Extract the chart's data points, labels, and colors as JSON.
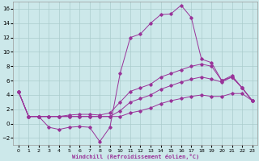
{
  "xlabel": "Windchill (Refroidissement éolien,°C)",
  "background_color": "#cce8ea",
  "grid_color": "#aacccc",
  "line_color": "#993399",
  "xlim": [
    -0.5,
    23.5
  ],
  "ylim": [
    -3,
    17
  ],
  "xticks": [
    0,
    1,
    2,
    3,
    4,
    5,
    6,
    7,
    8,
    9,
    10,
    11,
    12,
    13,
    14,
    15,
    16,
    17,
    18,
    19,
    20,
    21,
    22,
    23
  ],
  "yticks": [
    -2,
    0,
    2,
    4,
    6,
    8,
    10,
    12,
    14,
    16
  ],
  "upper": [
    4.5,
    1.0,
    1.0,
    -0.5,
    -0.8,
    -0.5,
    -0.4,
    -0.5,
    -2.5,
    -0.5,
    7.0,
    12.0,
    12.5,
    14.0,
    15.2,
    15.3,
    16.5,
    14.8,
    9.0,
    8.5,
    6.0,
    6.7,
    5.0,
    3.2
  ],
  "line1": [
    4.5,
    1.0,
    1.0,
    1.0,
    1.0,
    1.2,
    1.3,
    1.3,
    1.2,
    1.5,
    3.0,
    4.5,
    5.0,
    5.5,
    6.5,
    7.0,
    7.5,
    8.0,
    8.3,
    8.0,
    6.0,
    6.5,
    5.0,
    3.2
  ],
  "line2": [
    4.5,
    1.0,
    1.0,
    1.0,
    1.0,
    1.0,
    1.0,
    1.0,
    1.0,
    1.0,
    1.8,
    3.0,
    3.5,
    4.0,
    4.8,
    5.3,
    5.8,
    6.2,
    6.5,
    6.2,
    5.8,
    6.5,
    5.0,
    3.2
  ],
  "line3": [
    4.5,
    1.0,
    1.0,
    1.0,
    1.0,
    1.0,
    1.0,
    1.0,
    1.0,
    1.0,
    1.0,
    1.5,
    1.8,
    2.2,
    2.8,
    3.2,
    3.5,
    3.8,
    4.0,
    3.8,
    3.8,
    4.2,
    4.2,
    3.2
  ]
}
